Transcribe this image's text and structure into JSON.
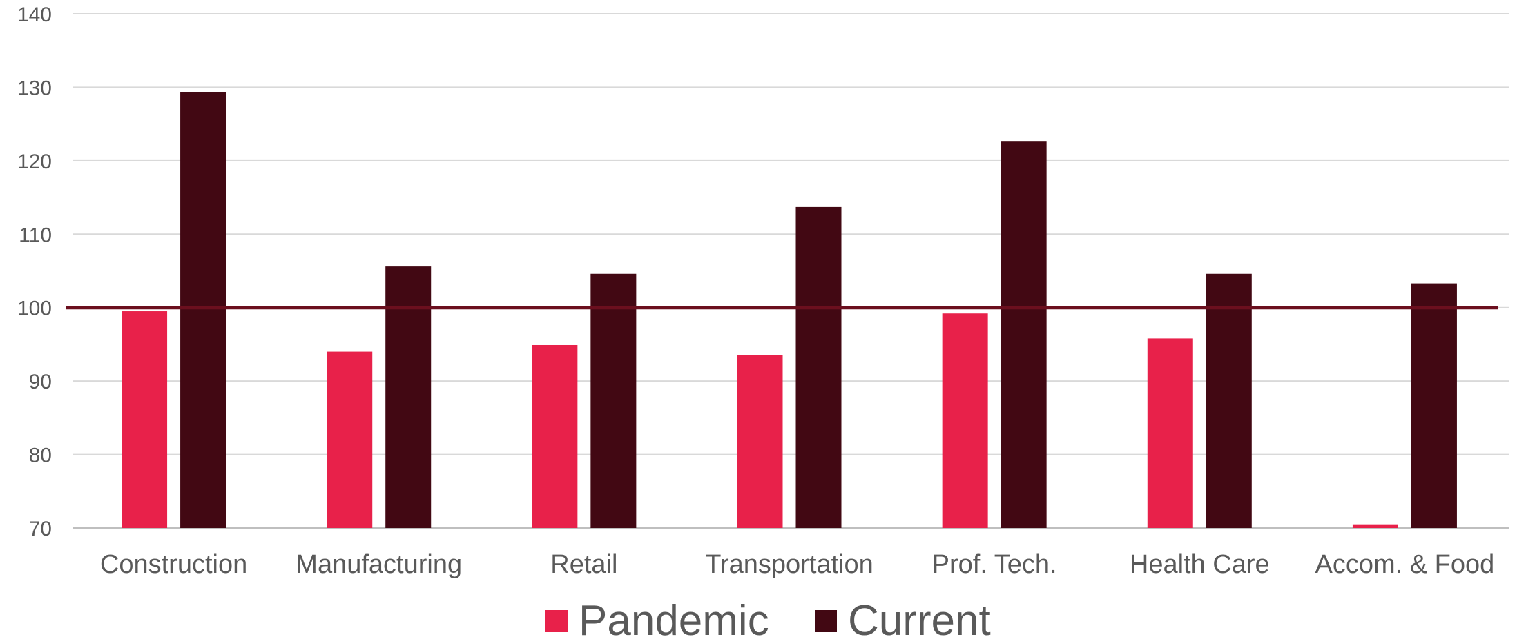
{
  "chart_data": {
    "type": "bar",
    "categories": [
      "Construction",
      "Manufacturing",
      "Retail",
      "Transportation",
      "Prof. Tech.",
      "Health Care",
      "Accom. & Food"
    ],
    "series": [
      {
        "name": "Pandemic",
        "color": "#E8214A",
        "values": [
          99.5,
          94.0,
          94.9,
          93.5,
          99.2,
          95.8,
          70.5
        ]
      },
      {
        "name": "Current",
        "color": "#420813",
        "values": [
          129.3,
          105.6,
          104.6,
          113.7,
          122.6,
          104.6,
          103.3
        ]
      }
    ],
    "ylim": [
      70,
      140
    ],
    "yticks": [
      70,
      80,
      90,
      100,
      110,
      120,
      130,
      140
    ],
    "reference_line": {
      "value": 100,
      "color": "#6B0F1E"
    },
    "grid": true,
    "legend_position": "bottom",
    "xlabel": "",
    "ylabel": ""
  }
}
